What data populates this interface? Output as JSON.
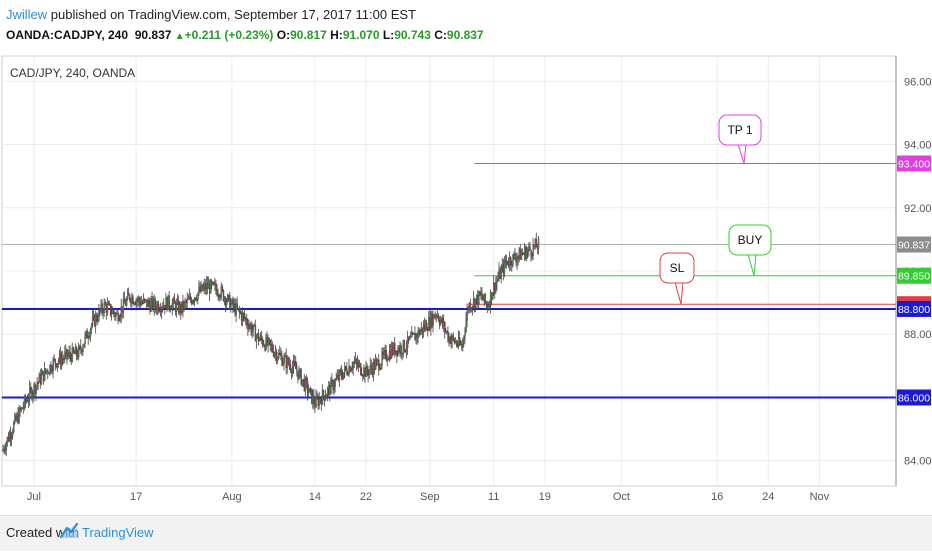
{
  "header": {
    "author": "Jwillew",
    "published": "published on TradingView.com, September 17, 2017 11:00 EST",
    "symbol": "OANDA:CADJPY, 240",
    "last": "90.837",
    "change": "+0.211 (+0.23%)",
    "o_label": "O:",
    "o": "90.817",
    "h_label": "H:",
    "h": "91.070",
    "l_label": "L:",
    "l": "90.743",
    "c_label": "C:",
    "c": "90.837"
  },
  "chart_title": "CAD/JPY, 240, OANDA",
  "footer": {
    "created_with": "Created with",
    "brand": "TradingView"
  },
  "chart_data": {
    "type": "candlestick",
    "title": "CAD/JPY, 240, OANDA",
    "y_range": [
      83.2,
      96.8
    ],
    "y_ticks": [
      84,
      86,
      88,
      90,
      92,
      94,
      96
    ],
    "y_tick_labels": [
      "84.000",
      "86.000",
      "88.000",
      "90.000",
      "92.000",
      "94.000",
      "96.000"
    ],
    "x_tick_labels": [
      "Jul",
      "17",
      "Aug",
      "14",
      "22",
      "Sep",
      "11",
      "19",
      "Oct",
      "16",
      "24",
      "Nov"
    ],
    "x_ticks_day": [
      0,
      16,
      31,
      44,
      52,
      62,
      72,
      80,
      92,
      107,
      115,
      123
    ],
    "x_day_range": [
      -5,
      135
    ],
    "grid": true,
    "closes_daily_approx": [
      {
        "day": -5,
        "close": 84.3
      },
      {
        "day": -3,
        "close": 85.2
      },
      {
        "day": -1,
        "close": 86.0
      },
      {
        "day": 1,
        "close": 86.6
      },
      {
        "day": 3,
        "close": 87.1
      },
      {
        "day": 5,
        "close": 87.3
      },
      {
        "day": 7,
        "close": 87.4
      },
      {
        "day": 9,
        "close": 88.3
      },
      {
        "day": 11,
        "close": 88.9
      },
      {
        "day": 13,
        "close": 88.6
      },
      {
        "day": 15,
        "close": 89.2
      },
      {
        "day": 17,
        "close": 89.0
      },
      {
        "day": 19,
        "close": 88.9
      },
      {
        "day": 21,
        "close": 89.0
      },
      {
        "day": 23,
        "close": 88.8
      },
      {
        "day": 25,
        "close": 89.2
      },
      {
        "day": 27,
        "close": 89.5
      },
      {
        "day": 29,
        "close": 89.4
      },
      {
        "day": 31,
        "close": 88.9
      },
      {
        "day": 33,
        "close": 88.5
      },
      {
        "day": 35,
        "close": 87.9
      },
      {
        "day": 37,
        "close": 87.6
      },
      {
        "day": 39,
        "close": 87.2
      },
      {
        "day": 41,
        "close": 86.9
      },
      {
        "day": 43,
        "close": 86.2
      },
      {
        "day": 44,
        "close": 85.8
      },
      {
        "day": 46,
        "close": 86.2
      },
      {
        "day": 48,
        "close": 86.7
      },
      {
        "day": 50,
        "close": 87.1
      },
      {
        "day": 52,
        "close": 86.8
      },
      {
        "day": 54,
        "close": 87.1
      },
      {
        "day": 56,
        "close": 87.5
      },
      {
        "day": 58,
        "close": 87.6
      },
      {
        "day": 60,
        "close": 88.0
      },
      {
        "day": 62,
        "close": 88.4
      },
      {
        "day": 63,
        "close": 88.7
      },
      {
        "day": 65,
        "close": 87.9
      },
      {
        "day": 67,
        "close": 87.6
      },
      {
        "day": 68,
        "close": 88.9
      },
      {
        "day": 70,
        "close": 89.2
      },
      {
        "day": 71,
        "close": 88.9
      },
      {
        "day": 72,
        "close": 89.5
      },
      {
        "day": 74,
        "close": 90.3
      },
      {
        "day": 76,
        "close": 90.5
      },
      {
        "day": 78,
        "close": 90.7
      },
      {
        "day": 79,
        "close": 90.837
      }
    ],
    "horizontal_lines": [
      {
        "label": "93.400",
        "value": 93.4,
        "color": "#e040e0",
        "start_day": 69
      },
      {
        "label": "89.850",
        "value": 89.85,
        "color": "#33cc33",
        "start_day": 69
      },
      {
        "label": "88.950",
        "value": 88.95,
        "color": "#e04040",
        "start_day": 68
      },
      {
        "label": "88.800",
        "value": 88.8,
        "color": "#1a1ad6",
        "start_day": -5
      },
      {
        "label": "86.000",
        "value": 86.0,
        "color": "#1a1ad6",
        "start_day": -5
      }
    ],
    "last_price": {
      "label": "90.837",
      "value": 90.837,
      "color": "#b0b0b0"
    },
    "callouts": [
      {
        "text": "TP 1",
        "color": "#e040e0",
        "value": 93.4
      },
      {
        "text": "BUY",
        "color": "#33cc33",
        "value": 89.85
      },
      {
        "text": "SL",
        "color": "#e04040",
        "value": 88.95
      }
    ],
    "colors": {
      "up": "#5aa05a",
      "down": "#b04040",
      "wick": "#444444",
      "grid": "#ececec",
      "axis": "#555555"
    }
  }
}
